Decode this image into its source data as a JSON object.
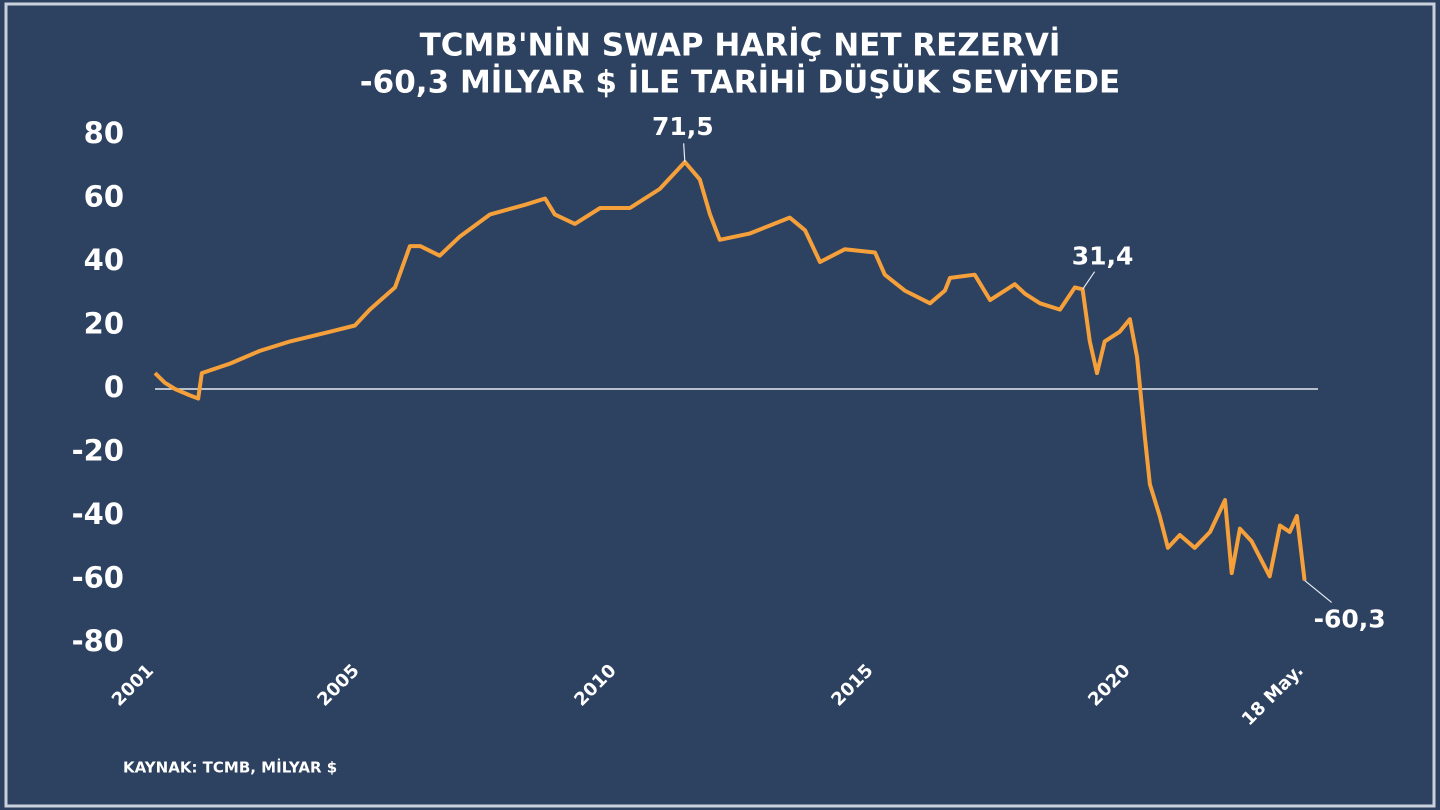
{
  "chart_data": {
    "type": "line",
    "title": [
      "TCMB'NİN SWAP HARİÇ NET REZERVİ",
      "-60,3 MİLYAR $ İLE TARİHİ DÜŞÜK SEVİYEDE"
    ],
    "source": "KAYNAK: TCMB, MİLYAR $",
    "x": [
      2001.0,
      2001.19,
      2001.39,
      2001.68,
      2001.84,
      2001.91,
      2002.46,
      2003.04,
      2003.63,
      2004.4,
      2004.89,
      2005.18,
      2005.67,
      2005.96,
      2006.16,
      2006.54,
      2006.93,
      2007.52,
      2008.2,
      2008.59,
      2008.78,
      2009.17,
      2009.66,
      2010.24,
      2010.82,
      2011.31,
      2011.6,
      2011.8,
      2011.99,
      2012.58,
      2013.35,
      2013.65,
      2013.94,
      2014.42,
      2015.01,
      2015.2,
      2015.59,
      2016.08,
      2016.37,
      2016.47,
      2016.95,
      2017.25,
      2017.73,
      2017.93,
      2018.22,
      2018.61,
      2018.9,
      2019.05,
      2019.19,
      2019.33,
      2019.48,
      2019.77,
      2019.97,
      2020.11,
      2020.26,
      2020.36,
      2020.55,
      2020.71,
      2020.94,
      2021.23,
      2021.53,
      2021.82,
      2021.95,
      2022.11,
      2022.34,
      2022.69,
      2022.89,
      2023.08,
      2023.22,
      2023.37
    ],
    "series": [
      {
        "color": "#f5a03a",
        "values": [
          5,
          2,
          0,
          -2,
          -3,
          5,
          8,
          12,
          15,
          18,
          20,
          25,
          32,
          45,
          45,
          42,
          48,
          55,
          58,
          60,
          55,
          52,
          57,
          57,
          63,
          71.5,
          66,
          55,
          47,
          49,
          54,
          50,
          40,
          44,
          43,
          36,
          31,
          27,
          31,
          35,
          36,
          28,
          33,
          30,
          27,
          25,
          32,
          31.4,
          15,
          5,
          15,
          18,
          22,
          10,
          -15,
          -30,
          -40,
          -50,
          -46,
          -50,
          -45,
          -35,
          -58,
          -44,
          -48,
          -59,
          -43,
          -45,
          -40,
          -60.3
        ],
        "value_labels": [
          null,
          null,
          null,
          null,
          null,
          null,
          null,
          null,
          null,
          null,
          null,
          null,
          null,
          null,
          null,
          null,
          null,
          null,
          null,
          null,
          null,
          null,
          null,
          null,
          null,
          "71,5",
          null,
          null,
          null,
          null,
          null,
          null,
          null,
          null,
          null,
          null,
          null,
          null,
          null,
          null,
          null,
          null,
          null,
          null,
          null,
          null,
          null,
          "31,4",
          null,
          null,
          null,
          null,
          null,
          null,
          null,
          null,
          null,
          null,
          null,
          null,
          null,
          null,
          null,
          null,
          null,
          null,
          null,
          null,
          null,
          "-60,3"
        ]
      }
    ],
    "xlim": [
      2001,
      2023.63
    ],
    "xticks": [
      2001,
      2005,
      2010,
      2015,
      2020,
      {
        "value": 2023.37,
        "label": "18 May."
      }
    ],
    "ylim": [
      -80,
      80
    ],
    "yticks": [
      -80,
      -60,
      -40,
      -20,
      0,
      20,
      40,
      60,
      80
    ]
  }
}
